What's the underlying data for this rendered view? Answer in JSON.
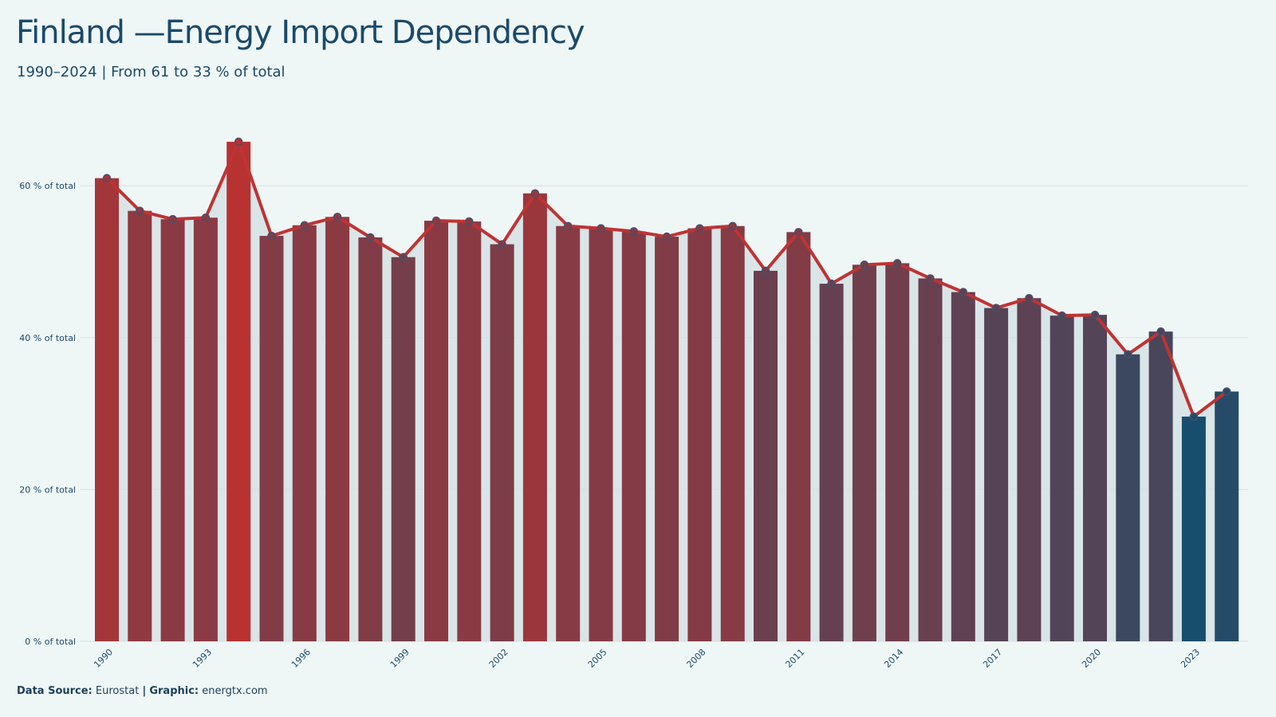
{
  "header": {
    "title": "Finland —Energy Import Dependency",
    "subtitle": "1990–2024 | From 61 to 33 % of total"
  },
  "footer": {
    "source_label": "Data Source:",
    "source_value": "Eurostat",
    "separator": "|",
    "graphic_label": "Graphic:",
    "graphic_value": "energtx.com"
  },
  "colors": {
    "background": "#eff6f6",
    "high": "#b83232",
    "low": "#174e6e",
    "line": "#bf3333",
    "area": "#d6e2e4",
    "grid": "#d8dfe0",
    "text": "#1a4a6b"
  },
  "chart_data": {
    "type": "bar",
    "x": [
      1990,
      1991,
      1992,
      1993,
      1994,
      1995,
      1996,
      1997,
      1998,
      1999,
      2000,
      2001,
      2002,
      2003,
      2004,
      2005,
      2006,
      2007,
      2008,
      2009,
      2010,
      2011,
      2012,
      2013,
      2014,
      2015,
      2016,
      2017,
      2018,
      2019,
      2020,
      2021,
      2022,
      2023,
      2024
    ],
    "xtick_labels": [
      "1990",
      "1993",
      "1996",
      "1999",
      "2002",
      "2005",
      "2008",
      "2011",
      "2014",
      "2017",
      "2020",
      "2023"
    ],
    "values": [
      61.0,
      56.7,
      55.6,
      55.8,
      65.8,
      53.4,
      54.8,
      55.9,
      53.2,
      50.6,
      55.4,
      55.3,
      52.3,
      59.0,
      54.7,
      54.4,
      54.0,
      53.3,
      54.4,
      54.7,
      48.8,
      53.9,
      47.1,
      49.6,
      49.8,
      47.8,
      46.0,
      43.9,
      45.2,
      42.9,
      43.0,
      37.8,
      40.8,
      29.6,
      32.9
    ],
    "ylim": [
      0,
      70
    ],
    "yticks": [
      0,
      20,
      40,
      60
    ],
    "ytick_labels": [
      "0 % of total",
      "20 % of total",
      "40 % of total",
      "60 % of total"
    ],
    "grid": true,
    "overlay": "line with markers"
  }
}
